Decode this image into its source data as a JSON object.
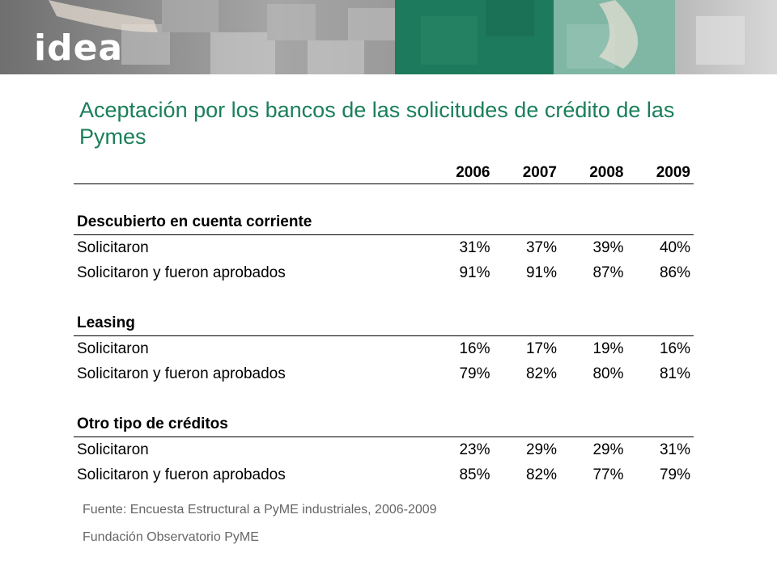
{
  "header": {
    "logo_text": "idea"
  },
  "title": "Aceptación por los bancos de las solicitudes de crédito de las Pymes",
  "table": {
    "years": [
      "2006",
      "2007",
      "2008",
      "2009"
    ],
    "sections": [
      {
        "name": "Descubierto en cuenta corriente",
        "rows": [
          {
            "label": "Solicitaron",
            "values": [
              "31%",
              "37%",
              "39%",
              "40%"
            ]
          },
          {
            "label": "Solicitaron y fueron aprobados",
            "values": [
              "91%",
              "91%",
              "87%",
              "86%"
            ]
          }
        ]
      },
      {
        "name": "Leasing",
        "rows": [
          {
            "label": "Solicitaron",
            "values": [
              "16%",
              "17%",
              "19%",
              "16%"
            ]
          },
          {
            "label": "Solicitaron y fueron aprobados",
            "values": [
              "79%",
              "82%",
              "80%",
              "81%"
            ]
          }
        ]
      },
      {
        "name": "Otro tipo de créditos",
        "rows": [
          {
            "label": "Solicitaron",
            "values": [
              "23%",
              "29%",
              "29%",
              "31%"
            ]
          },
          {
            "label": "Solicitaron y fueron aprobados",
            "values": [
              "85%",
              "82%",
              "77%",
              "79%"
            ]
          }
        ]
      }
    ]
  },
  "footer": {
    "source": "Fuente: Encuesta Estructural a PyME industriales, 2006-2009",
    "org": "Fundación Observatorio PyME"
  },
  "colors": {
    "title": "#1a7f5a",
    "banner_green": "#1e7a5c",
    "banner_light_green": "#7fb6a4"
  }
}
